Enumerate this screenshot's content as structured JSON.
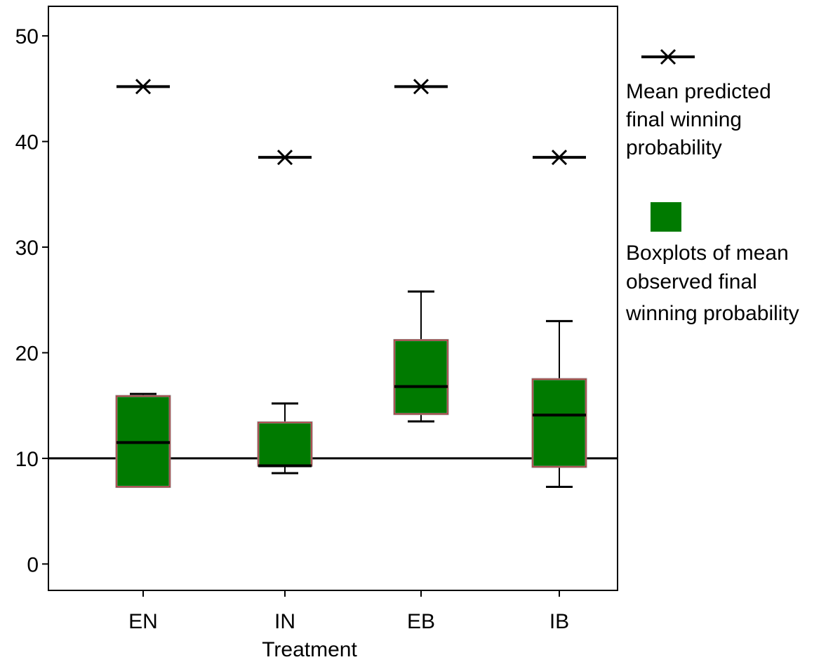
{
  "chart_data": {
    "type": "boxplot",
    "xlabel": "Treatment",
    "ylabel": "",
    "categories": [
      "EN",
      "IN",
      "EB",
      "IB"
    ],
    "ylim": [
      -2.5,
      52.8
    ],
    "yticks": [
      0,
      10,
      20,
      30,
      40,
      50
    ],
    "grid": false,
    "reference_line": 10,
    "mean_predicted": [
      45.2,
      38.5,
      45.2,
      38.5
    ],
    "boxes": [
      {
        "category": "EN",
        "whisker_low": 7.3,
        "q1": 7.3,
        "median": 11.5,
        "q3": 15.9,
        "whisker_high": 16.1
      },
      {
        "category": "IN",
        "whisker_low": 8.6,
        "q1": 9.3,
        "median": 9.3,
        "q3": 13.4,
        "whisker_high": 15.2
      },
      {
        "category": "EB",
        "whisker_low": 13.5,
        "q1": 14.2,
        "median": 16.8,
        "q3": 21.2,
        "whisker_high": 25.8
      },
      {
        "category": "IB",
        "whisker_low": 7.3,
        "q1": 9.2,
        "median": 14.1,
        "q3": 17.5,
        "whisker_high": 23.0
      }
    ],
    "legend": {
      "placement": "right",
      "entries": [
        {
          "marker": "x-line",
          "lines": [
            "Mean predicted",
            "final  winning",
            "probability"
          ]
        },
        {
          "marker": "square",
          "lines": [
            "Boxplots of mean",
            "observed  final",
            "winning probability"
          ]
        }
      ]
    },
    "colors": {
      "box_fill": "#007a00",
      "box_edge": "#d02020",
      "median": "#000000",
      "axis": "#000000"
    }
  }
}
